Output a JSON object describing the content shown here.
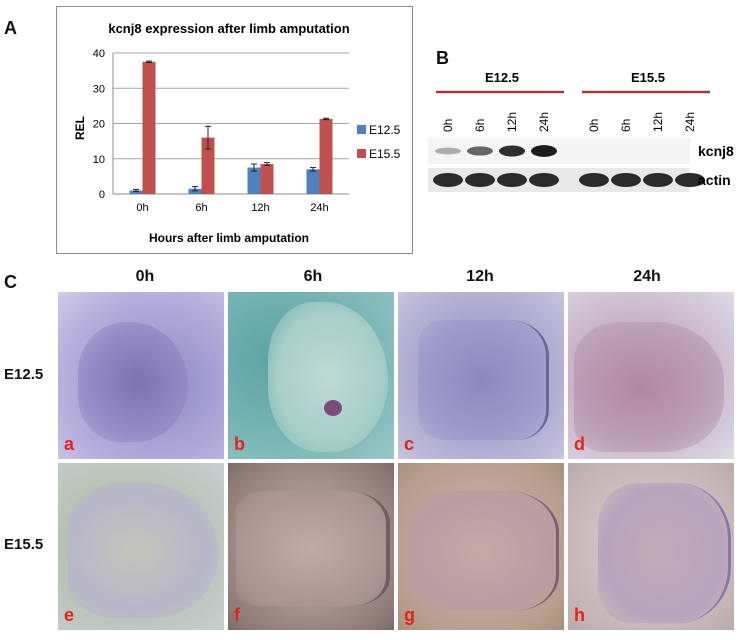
{
  "panels": {
    "a": "A",
    "b": "B",
    "c": "C"
  },
  "colors": {
    "e12": "#4f81bd",
    "e15": "#c0504d",
    "tissue_label": "#e0241b",
    "blot_line": "#a33a3a"
  },
  "chart_data": {
    "type": "bar",
    "title": "kcnj8 expression after limb amputation",
    "xlabel": "Hours after limb amputation",
    "ylabel": "REL",
    "categories": [
      "0h",
      "6h",
      "12h",
      "24h"
    ],
    "ylim": [
      0,
      40
    ],
    "yticks": [
      0,
      10,
      20,
      30,
      40
    ],
    "grid": true,
    "legend_position": "right",
    "series": [
      {
        "name": "E12.5",
        "values": [
          1,
          1.5,
          7.5,
          7
        ],
        "errors": [
          0.3,
          0.6,
          1.0,
          0.5
        ],
        "color": "#4f81bd"
      },
      {
        "name": "E15.5",
        "values": [
          37.5,
          16,
          8.5,
          21.3
        ],
        "errors": [
          0.2,
          3.2,
          0.4,
          0.2
        ],
        "color": "#c0504d"
      }
    ]
  },
  "blot": {
    "groups": [
      {
        "label": "E12.5",
        "lanes": [
          "0h",
          "6h",
          "12h",
          "24h"
        ]
      },
      {
        "label": "E15.5",
        "lanes": [
          "0h",
          "6h",
          "12h",
          "24h"
        ]
      }
    ],
    "rows": [
      "kcnj8",
      "actin"
    ],
    "kcnj8_intensity": [
      0.15,
      0.55,
      0.85,
      0.95,
      0,
      0,
      0,
      0
    ]
  },
  "grid_images": {
    "columns": [
      "0h",
      "6h",
      "12h",
      "24h"
    ],
    "rows": [
      "E12.5",
      "E15.5"
    ],
    "labels": [
      "a",
      "b",
      "c",
      "d",
      "e",
      "f",
      "g",
      "h"
    ]
  }
}
